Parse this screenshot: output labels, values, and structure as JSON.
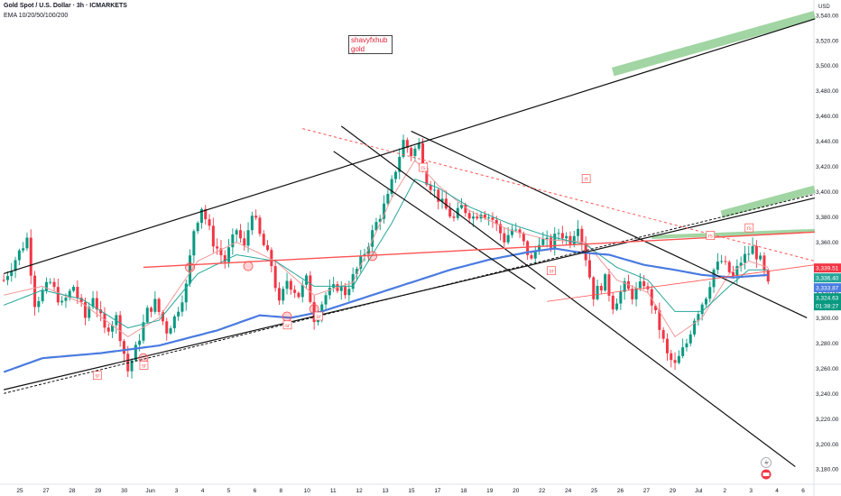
{
  "header": {
    "title": "Gold Spot / U.S. Dollar · 3h · ICMARKETS",
    "indicator": "EMA 10/20/50/100/200"
  },
  "note": {
    "line1": "shavyfxhub",
    "line2": "gold"
  },
  "currency": "USD",
  "colors": {
    "up": "#089981",
    "down": "#f23645",
    "ema_fast": "#ef9a9a",
    "ema_mid": "#26a69a",
    "ema_slow": "#4a7be0",
    "trend": "#111111",
    "red_line": "#ff5252",
    "green_band": "#81c784",
    "axis_text": "#131722"
  },
  "chart_data": {
    "type": "candlestick",
    "title": "Gold Spot / U.S. Dollar · 3h · ICMARKETS",
    "ylim": [
      3168,
      3552
    ],
    "y_ticks": [
      3180,
      3200,
      3220,
      3240,
      3260,
      3280,
      3300,
      3320,
      3340,
      3360,
      3380,
      3400,
      3420,
      3440,
      3460,
      3480,
      3500,
      3520,
      3540
    ],
    "y_tick_labels": [
      "3,180.00",
      "3,200.00",
      "3,220.00",
      "3,240.00",
      "3,260.00",
      "3,280.00",
      "3,300.00",
      "3,320.00",
      "3,340.00",
      "3,360.00",
      "3,380.00",
      "3,400.00",
      "3,420.00",
      "3,440.00",
      "3,460.00",
      "3,480.00",
      "3,500.00",
      "3,520.00",
      "3,540.00"
    ],
    "x_labels": [
      "25",
      "27",
      "28",
      "29",
      "30",
      "Jun",
      "3",
      "4",
      "5",
      "6",
      "8",
      "10",
      "11",
      "12",
      "13",
      "15",
      "17",
      "18",
      "19",
      "20",
      "22",
      "24",
      "25",
      "26",
      "27",
      "29",
      "Jul",
      "2",
      "3",
      "4",
      "6"
    ],
    "close_path": [
      [
        0,
        3330
      ],
      [
        6,
        3363
      ],
      [
        8,
        3312
      ],
      [
        12,
        3328
      ],
      [
        15,
        3310
      ],
      [
        18,
        3325
      ],
      [
        21,
        3300
      ],
      [
        23,
        3318
      ],
      [
        26,
        3290
      ],
      [
        29,
        3300
      ],
      [
        32,
        3258
      ],
      [
        34,
        3275
      ],
      [
        37,
        3305
      ],
      [
        39,
        3312
      ],
      [
        42,
        3290
      ],
      [
        44,
        3300
      ],
      [
        47,
        3325
      ],
      [
        49,
        3370
      ],
      [
        51,
        3388
      ],
      [
        54,
        3360
      ],
      [
        57,
        3345
      ],
      [
        60,
        3370
      ],
      [
        62,
        3355
      ],
      [
        64,
        3385
      ],
      [
        66,
        3365
      ],
      [
        69,
        3342
      ],
      [
        71,
        3310
      ],
      [
        73,
        3330
      ],
      [
        76,
        3318
      ],
      [
        78,
        3330
      ],
      [
        80,
        3300
      ],
      [
        83,
        3318
      ],
      [
        86,
        3325
      ],
      [
        88,
        3320
      ],
      [
        91,
        3338
      ],
      [
        93,
        3352
      ],
      [
        96,
        3375
      ],
      [
        99,
        3395
      ],
      [
        101,
        3418
      ],
      [
        103,
        3440
      ],
      [
        105,
        3430
      ],
      [
        107,
        3437
      ],
      [
        109,
        3410
      ],
      [
        111,
        3400
      ],
      [
        113,
        3390
      ],
      [
        116,
        3378
      ],
      [
        118,
        3388
      ],
      [
        121,
        3380
      ],
      [
        123,
        3385
      ],
      [
        126,
        3378
      ],
      [
        129,
        3362
      ],
      [
        131,
        3370
      ],
      [
        133,
        3365
      ],
      [
        136,
        3345
      ],
      [
        138,
        3362
      ],
      [
        141,
        3358
      ],
      [
        143,
        3368
      ],
      [
        146,
        3362
      ],
      [
        148,
        3375
      ],
      [
        150,
        3348
      ],
      [
        152,
        3318
      ],
      [
        155,
        3330
      ],
      [
        157,
        3310
      ],
      [
        160,
        3325
      ],
      [
        162,
        3318
      ],
      [
        165,
        3328
      ],
      [
        167,
        3312
      ],
      [
        169,
        3292
      ],
      [
        171,
        3270
      ],
      [
        173,
        3262
      ],
      [
        176,
        3280
      ],
      [
        178,
        3300
      ],
      [
        181,
        3318
      ],
      [
        183,
        3338
      ],
      [
        185,
        3345
      ],
      [
        188,
        3332
      ],
      [
        190,
        3345
      ],
      [
        193,
        3355
      ],
      [
        195,
        3345
      ],
      [
        197,
        3325
      ]
    ],
    "ema_series": [
      {
        "key": "ema_fast",
        "color": "#ef9a9a",
        "points": [
          [
            0,
            3318
          ],
          [
            10,
            3325
          ],
          [
            20,
            3312
          ],
          [
            32,
            3285
          ],
          [
            40,
            3300
          ],
          [
            50,
            3345
          ],
          [
            60,
            3360
          ],
          [
            70,
            3345
          ],
          [
            80,
            3318
          ],
          [
            90,
            3328
          ],
          [
            100,
            3395
          ],
          [
            106,
            3425
          ],
          [
            112,
            3405
          ],
          [
            120,
            3385
          ],
          [
            130,
            3370
          ],
          [
            140,
            3362
          ],
          [
            150,
            3360
          ],
          [
            158,
            3330
          ],
          [
            166,
            3320
          ],
          [
            173,
            3285
          ],
          [
            180,
            3300
          ],
          [
            187,
            3335
          ],
          [
            192,
            3345
          ],
          [
            197,
            3340
          ]
        ]
      },
      {
        "key": "ema_mid",
        "color": "#26a69a",
        "points": [
          [
            0,
            3310
          ],
          [
            10,
            3322
          ],
          [
            20,
            3315
          ],
          [
            32,
            3292
          ],
          [
            40,
            3298
          ],
          [
            50,
            3335
          ],
          [
            60,
            3350
          ],
          [
            70,
            3345
          ],
          [
            80,
            3325
          ],
          [
            90,
            3325
          ],
          [
            100,
            3375
          ],
          [
            106,
            3410
          ],
          [
            112,
            3403
          ],
          [
            120,
            3388
          ],
          [
            130,
            3375
          ],
          [
            140,
            3365
          ],
          [
            150,
            3358
          ],
          [
            158,
            3340
          ],
          [
            166,
            3330
          ],
          [
            173,
            3305
          ],
          [
            180,
            3305
          ],
          [
            187,
            3325
          ],
          [
            192,
            3338
          ],
          [
            197,
            3338
          ]
        ]
      },
      {
        "key": "ema_slow",
        "color": "#4a7be0",
        "points": [
          [
            0,
            3257
          ],
          [
            10,
            3268
          ],
          [
            25,
            3272
          ],
          [
            40,
            3278
          ],
          [
            55,
            3290
          ],
          [
            66,
            3302
          ],
          [
            74,
            3300
          ],
          [
            82,
            3305
          ],
          [
            95,
            3318
          ],
          [
            105,
            3328
          ],
          [
            115,
            3338
          ],
          [
            125,
            3346
          ],
          [
            135,
            3352
          ],
          [
            142,
            3355
          ],
          [
            148,
            3352
          ],
          [
            156,
            3350
          ],
          [
            165,
            3342
          ],
          [
            173,
            3338
          ],
          [
            180,
            3334
          ],
          [
            188,
            3332
          ],
          [
            197,
            3334
          ]
        ]
      }
    ],
    "trendlines": [
      {
        "kind": "solid",
        "from": [
          0,
          3335
        ],
        "to": [
          209,
          3537
        ]
      },
      {
        "kind": "solid",
        "from": [
          87,
          3452
        ],
        "to": [
          204,
          3182
        ]
      },
      {
        "kind": "solid",
        "from": [
          85,
          3432
        ],
        "to": [
          137,
          3323
        ]
      },
      {
        "kind": "solid",
        "from": [
          105,
          3448
        ],
        "to": [
          207,
          3300
        ]
      },
      {
        "kind": "solid",
        "from": [
          0,
          3243
        ],
        "to": [
          209,
          3395
        ]
      },
      {
        "kind": "dashed",
        "from": [
          0,
          3240
        ],
        "to": [
          209,
          3398
        ]
      },
      {
        "kind": "dotted",
        "from": [
          77,
          3450
        ],
        "to": [
          209,
          3345
        ]
      },
      {
        "kind": "redline",
        "from": [
          36,
          3340
        ],
        "to": [
          209,
          3368
        ]
      },
      {
        "kind": "redthin",
        "from": [
          140,
          3313
        ],
        "to": [
          209,
          3342
        ]
      }
    ],
    "zones": [
      {
        "from": [
          157,
          3495
        ],
        "to": [
          209,
          3540
        ],
        "width_price": 7
      },
      {
        "from": [
          185,
          3382
        ],
        "to": [
          209,
          3402
        ],
        "width_price": 6
      },
      {
        "from": [
          167,
          3364
        ],
        "to": [
          209,
          3369
        ],
        "width_price": 3
      }
    ],
    "circle_marks": [
      [
        48,
        3340
      ],
      [
        63,
        3341
      ],
      [
        95,
        3349
      ],
      [
        36,
        3268
      ],
      [
        73,
        3301
      ],
      [
        80,
        3307
      ]
    ],
    "labels": [
      {
        "text": "sr",
        "at": [
          24,
          3254
        ]
      },
      {
        "text": "sr",
        "at": [
          36,
          3262
        ]
      },
      {
        "text": "sr",
        "at": [
          73,
          3294
        ]
      },
      {
        "text": "sr",
        "at": [
          81,
          3301
        ]
      },
      {
        "text": "sr",
        "at": [
          141,
          3337
        ]
      },
      {
        "text": "rt",
        "at": [
          150,
          3410
        ]
      },
      {
        "text": "rs",
        "at": [
          108,
          3419
        ]
      },
      {
        "text": "rs",
        "at": [
          182,
          3365
        ]
      },
      {
        "text": "rs",
        "at": [
          192,
          3371
        ]
      }
    ],
    "price_tags": [
      {
        "text": "3,339.51",
        "value": 3339.51,
        "color": "#f23645"
      },
      {
        "text": "3,336.40",
        "value": 3336.4,
        "color": "#26a69a"
      },
      {
        "text": "3,333.87",
        "value": 3333.87,
        "color": "#4a7be0"
      },
      {
        "text": "3,324.63",
        "value": 3324.63,
        "color": "#089981",
        "sub": "01:38:27"
      }
    ]
  }
}
